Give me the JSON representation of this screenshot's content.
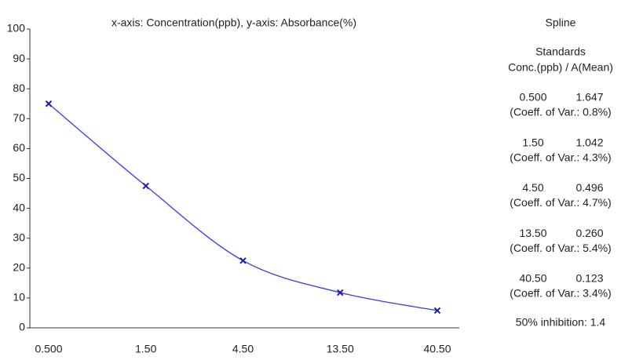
{
  "chart_data": {
    "type": "line",
    "title": "x-axis: Concentration(ppb), y-axis: Absorbance(%)",
    "categories": [
      "0.500",
      "1.50",
      "4.50",
      "13.50",
      "40.50"
    ],
    "series": [
      {
        "name": "Spline",
        "color": "#3a3af0",
        "marker_color": "#1c1ca8",
        "values": [
          75,
          47.5,
          22.5,
          11.8,
          5.8
        ]
      }
    ],
    "ylim": [
      0,
      100
    ],
    "yticks": [
      0,
      10,
      20,
      30,
      40,
      50,
      60,
      70,
      80,
      90,
      100
    ],
    "smooth": true
  },
  "panel": {
    "title": "Spline",
    "heading": "Standards",
    "columns": "Conc.(ppb) / A(Mean)",
    "entries": [
      {
        "conc": "0.500",
        "mean": "1.647",
        "cv": "(Coeff. of Var.: 0.8%)"
      },
      {
        "conc": "1.50",
        "mean": "1.042",
        "cv": "(Coeff. of Var.: 4.3%)"
      },
      {
        "conc": "4.50",
        "mean": "0.496",
        "cv": "(Coeff. of Var.: 4.7%)"
      },
      {
        "conc": "13.50",
        "mean": "0.260",
        "cv": "(Coeff. of Var.: 5.4%)"
      },
      {
        "conc": "40.50",
        "mean": "0.123",
        "cv": "(Coeff. of Var.: 3.4%)"
      }
    ],
    "inhibition": "50% inhibition: 1.4"
  }
}
